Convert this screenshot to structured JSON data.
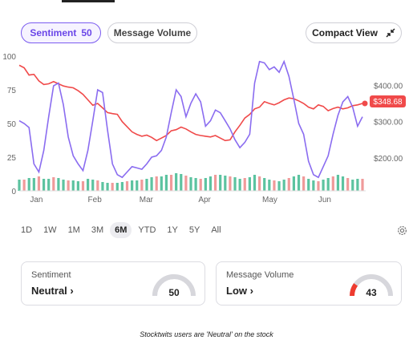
{
  "header": {
    "sentiment_tab_label": "Sentiment",
    "sentiment_tab_value": "50",
    "message_volume_tab_label": "Message Volume",
    "compact_view_label": "Compact View"
  },
  "colors": {
    "accent": "#7b5cf0",
    "price": "#f04a4a",
    "bull": "#5cc3a0",
    "bear": "#f09a9a"
  },
  "chart_data": {
    "type": "line",
    "x_ticks": [
      "Jan",
      "Feb",
      "Mar",
      "Apr",
      "May",
      "Jun"
    ],
    "left_axis": {
      "ticks": [
        0,
        25,
        50,
        75,
        100
      ],
      "range": [
        0,
        100
      ]
    },
    "right_axis": {
      "ticks": [
        "$200.00",
        "$300.00",
        "$400.00"
      ],
      "range": [
        110,
        480
      ]
    },
    "price_label": "$348.68",
    "series": [
      {
        "values_sentiment": [
          52,
          50,
          47,
          20,
          14,
          30,
          55,
          78,
          80,
          64,
          40,
          26,
          20,
          15,
          30,
          52,
          75,
          73,
          45,
          20,
          12,
          10,
          14,
          18,
          17,
          16,
          20,
          25,
          26,
          30,
          40,
          58,
          75,
          70,
          55,
          65,
          72,
          66,
          48,
          52,
          60,
          58,
          52,
          46,
          38,
          32,
          36,
          42,
          80,
          96,
          95,
          90,
          92,
          88,
          96,
          85,
          68,
          50,
          42,
          22,
          12,
          10,
          18,
          26,
          42,
          56,
          66,
          70,
          62,
          48,
          55
        ]
      },
      {
        "values_price": [
          455,
          448,
          428,
          430,
          412,
          402,
          404,
          410,
          404,
          398,
          395,
          393,
          385,
          375,
          360,
          345,
          350,
          338,
          325,
          322,
          320,
          300,
          286,
          272,
          265,
          260,
          263,
          257,
          248,
          255,
          262,
          275,
          278,
          285,
          280,
          272,
          265,
          262,
          260,
          258,
          262,
          255,
          248,
          250,
          272,
          290,
          310,
          320,
          335,
          340,
          355,
          350,
          346,
          352,
          360,
          365,
          363,
          357,
          350,
          340,
          335,
          346,
          342,
          330,
          336,
          340,
          335,
          338,
          344,
          346,
          350
        ]
      },
      {
        "values_volume": [
          14,
          14,
          16,
          16,
          18,
          15,
          15,
          17,
          16,
          14,
          13,
          13,
          12,
          12,
          15,
          14,
          13,
          11,
          10,
          10,
          10,
          11,
          12,
          13,
          13,
          14,
          15,
          17,
          18,
          18,
          20,
          20,
          22,
          21,
          19,
          17,
          16,
          15,
          16,
          18,
          20,
          20,
          19,
          18,
          17,
          15,
          16,
          17,
          20,
          18,
          16,
          14,
          13,
          12,
          14,
          16,
          18,
          20,
          18,
          15,
          13,
          12,
          14,
          16,
          18,
          20,
          18,
          16,
          14,
          15,
          15
        ]
      }
    ]
  },
  "range_buttons": [
    "1D",
    "1W",
    "1M",
    "3M",
    "6M",
    "YTD",
    "1Y",
    "5Y",
    "All"
  ],
  "active_range": "6M",
  "cards": {
    "sentiment": {
      "label": "Sentiment",
      "value": "Neutral",
      "score": "50",
      "level": 0.5
    },
    "message_volume": {
      "label": "Message Volume",
      "value": "Low",
      "score": "43",
      "level": 0.2
    }
  },
  "caption": "Stocktwits users are 'Neutral' on the stock"
}
